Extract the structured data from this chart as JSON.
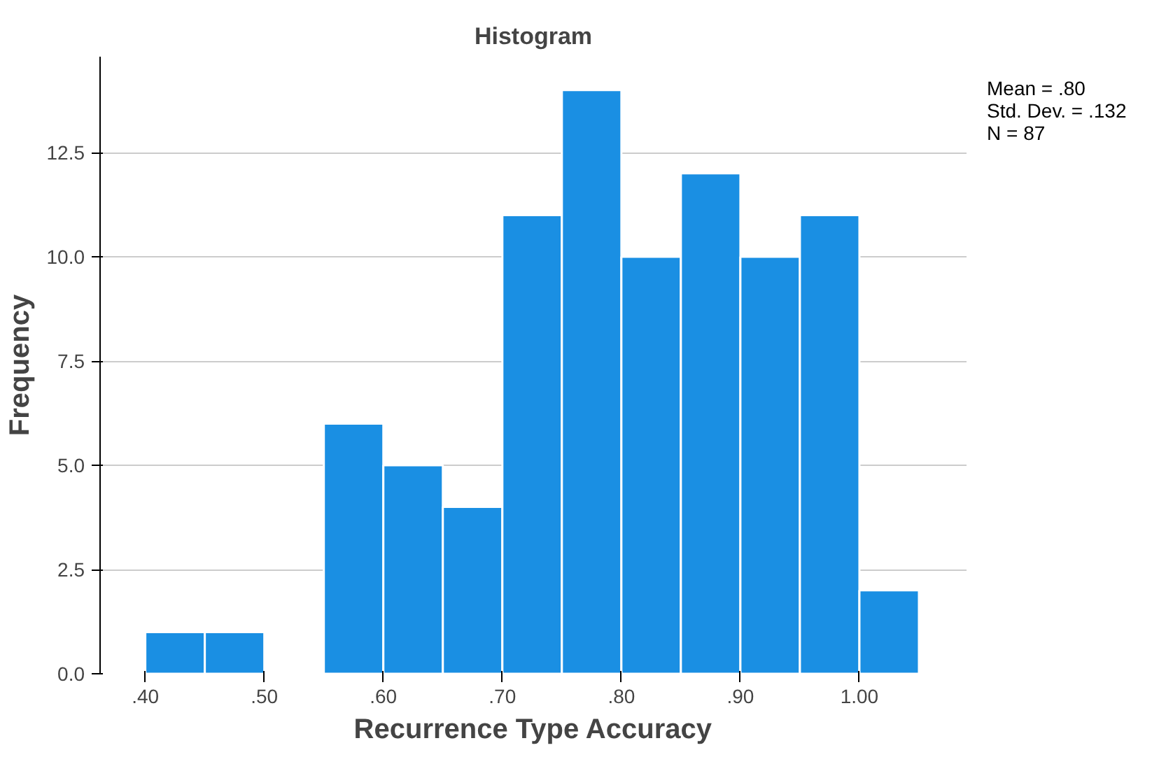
{
  "chart_data": {
    "type": "histogram",
    "title": "Histogram",
    "xlabel": "Recurrence Type Accuracy",
    "ylabel": "Frequency",
    "bins": [
      0.4,
      0.45,
      0.5,
      0.55,
      0.6,
      0.65,
      0.7,
      0.75,
      0.8,
      0.85,
      0.9,
      0.95,
      1.0,
      1.05
    ],
    "values": [
      1,
      1,
      0,
      6,
      5,
      4,
      11,
      14,
      10,
      12,
      10,
      11,
      2
    ],
    "color": "#1a8fe3",
    "xlim": [
      0.362,
      1.09
    ],
    "xticks": [
      {
        "value": 0.4,
        "label": ".40"
      },
      {
        "value": 0.5,
        "label": ".50"
      },
      {
        "value": 0.6,
        "label": ".60"
      },
      {
        "value": 0.7,
        "label": ".70"
      },
      {
        "value": 0.8,
        "label": ".80"
      },
      {
        "value": 0.9,
        "label": ".90"
      },
      {
        "value": 1.0,
        "label": "1.00"
      }
    ],
    "ylim": [
      0,
      14.8
    ],
    "yticks": [
      {
        "value": 0,
        "label": "0.0"
      },
      {
        "value": 2.5,
        "label": "2.5"
      },
      {
        "value": 5,
        "label": "5.0"
      },
      {
        "value": 7.5,
        "label": "7.5"
      },
      {
        "value": 10,
        "label": "10.0"
      },
      {
        "value": 12.5,
        "label": "12.5"
      }
    ],
    "grid": "y",
    "annotations": [
      "Mean = .80",
      "Std. Dev. = .132",
      "N = 87"
    ]
  }
}
